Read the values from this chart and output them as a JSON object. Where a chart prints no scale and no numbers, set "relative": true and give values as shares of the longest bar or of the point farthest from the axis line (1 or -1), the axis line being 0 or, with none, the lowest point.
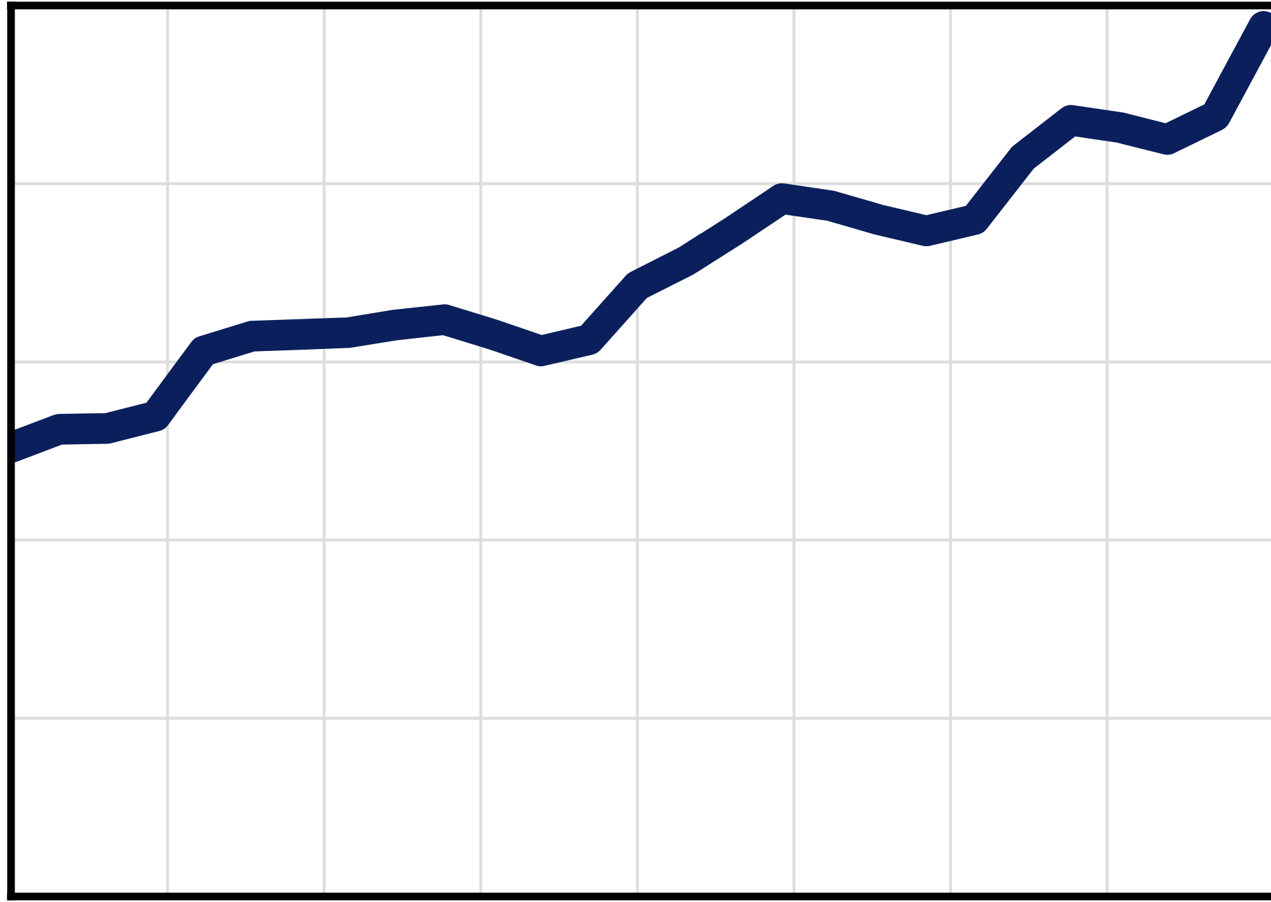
{
  "chart_data": {
    "type": "line",
    "relative": true,
    "categories": [
      null,
      null,
      null,
      null,
      null,
      null,
      null,
      null,
      null,
      null,
      null,
      null,
      null,
      null,
      null,
      null,
      null,
      null,
      null,
      null,
      null,
      null,
      null,
      null,
      null,
      null,
      null
    ],
    "series": [
      {
        "color": "#0a1f5c",
        "values": [
          0.516,
          0.537,
          0.538,
          0.552,
          0.627,
          0.644,
          0.646,
          0.648,
          0.657,
          0.663,
          0.646,
          0.627,
          0.64,
          0.702,
          0.73,
          0.765,
          0.802,
          0.794,
          0.778,
          0.765,
          0.778,
          0.849,
          0.892,
          0.884,
          0.87,
          0.897,
          1.0
        ]
      }
    ],
    "grid": true,
    "tick_labels": false,
    "line_style": "solid",
    "legend": false
  }
}
